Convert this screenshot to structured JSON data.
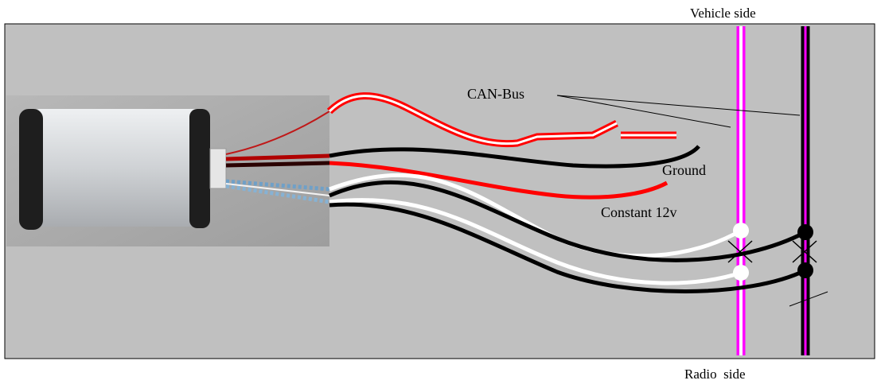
{
  "labels": {
    "vehicle_side": "Vehicle side",
    "radio_side": "Radio  side",
    "can_bus": "CAN-Bus",
    "ground": "Ground",
    "constant_12v": "Constant 12v"
  },
  "colors": {
    "panel_background": "#c0c0c0",
    "panel_border": "#000000",
    "wire_red": "#ff0000",
    "wire_black": "#000000",
    "wire_white": "#ffffff",
    "can_wire_pink": "#ff00ff",
    "module_body": "#d4d6d8",
    "module_endcap": "#1e1e1e"
  },
  "icons": {
    "cut_mark": "x-cut-icon",
    "junction": "junction-dot-icon"
  }
}
